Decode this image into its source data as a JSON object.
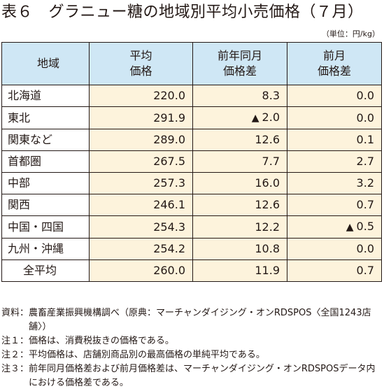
{
  "title": "表６　グラニュー糖の地域別平均小売価格（７月）",
  "unit": "（単位：円/kg）",
  "table": {
    "headers": [
      [
        "地域"
      ],
      [
        "平均",
        "価格"
      ],
      [
        "前年同月",
        "価格差"
      ],
      [
        "前月",
        "価格差"
      ]
    ],
    "rows": [
      {
        "region": "北海道",
        "price": "220.0",
        "yoy": "8.3",
        "mom": "0.0"
      },
      {
        "region": "東北",
        "price": "291.9",
        "yoy": "2.0",
        "yoy_neg": true,
        "mom": "0.0"
      },
      {
        "region": "関東など",
        "price": "289.0",
        "yoy": "12.6",
        "mom": "0.1"
      },
      {
        "region": "首都圏",
        "price": "267.5",
        "yoy": "7.7",
        "mom": "2.7"
      },
      {
        "region": "中部",
        "price": "257.3",
        "yoy": "16.0",
        "mom": "3.2"
      },
      {
        "region": "関西",
        "price": "246.1",
        "yoy": "12.6",
        "mom": "0.7"
      },
      {
        "region": "中国・四国",
        "price": "254.3",
        "yoy": "12.2",
        "mom": "0.5",
        "mom_neg": true
      },
      {
        "region": "九州・沖縄",
        "price": "254.2",
        "yoy": "10.8",
        "mom": "0.0"
      },
      {
        "region": "全平均",
        "price": "260.0",
        "yoy": "11.9",
        "mom": "0.7",
        "total": true
      }
    ]
  },
  "negative_marker": "▲",
  "colors": {
    "header_bg": "#cfe7f5",
    "cell_bg": "#fdf3dc",
    "text": "#231815"
  },
  "notes": [
    {
      "label": "資料：",
      "text": "農畜産業振興機構調べ（原典：マーチャンダイジング・オンRDSPOS〈全国1243店舗〉）"
    },
    {
      "label": "注１：",
      "text": "価格は、消費税抜きの価格である。"
    },
    {
      "label": "注２：",
      "text": "平均価格は、店舗別商品別の最高価格の単純平均である。"
    },
    {
      "label": "注３：",
      "text": "前年同月価格差および前月価格差は、マーチャンダイジング・オンRDSPOSデータ内における価格差である。"
    }
  ]
}
